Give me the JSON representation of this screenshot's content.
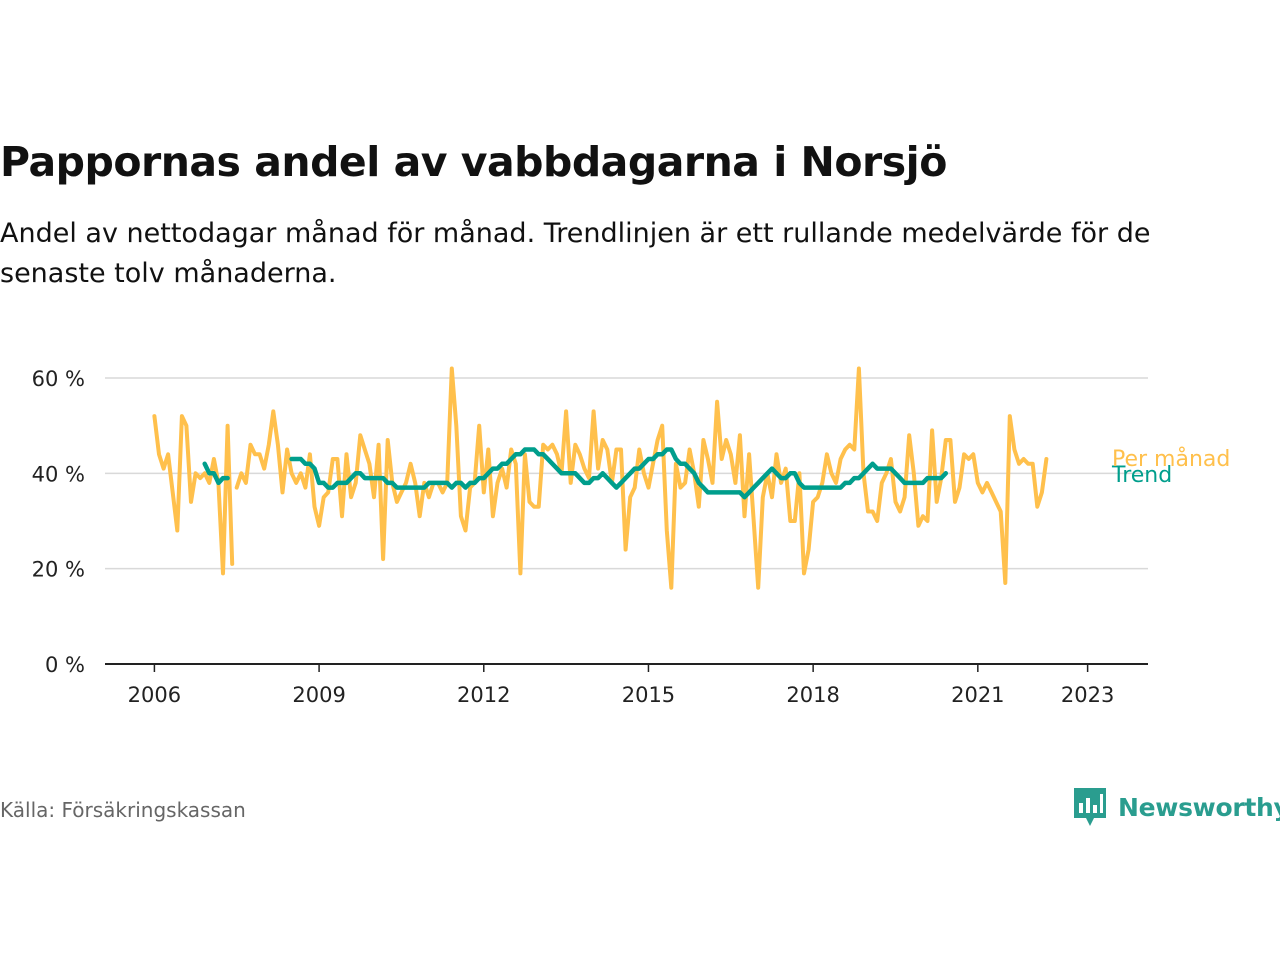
{
  "title": "Pappornas andel av vabbdagarna i Norsjö",
  "subtitle": "Andel av nettodagar månad för månad. Trendlinjen är ett rullande medelvärde för de senaste tolv månaderna.",
  "source": "Källa: Försäkringskassan",
  "brand": "Newsworthy",
  "colors": {
    "monthly": "#ffc04c",
    "trend": "#009e8c",
    "grid": "#d9d9d9",
    "axis": "#222222",
    "brand": "#2a9d8f"
  },
  "chart_data": {
    "type": "line",
    "x_axis": {
      "ticks": [
        2006,
        2009,
        2012,
        2015,
        2018,
        2021,
        2023
      ],
      "range": [
        2005.1,
        2024.1
      ]
    },
    "y_axis": {
      "ticks": [
        0,
        20,
        40,
        60
      ],
      "tick_labels": [
        "0 %",
        "20 %",
        "40 %",
        "60 %"
      ],
      "range": [
        0,
        60
      ]
    },
    "grid": true,
    "series": [
      {
        "name": "Per månad",
        "color": "#ffc04c",
        "segments": [
          {
            "start": 2006.0,
            "values": [
              52,
              44,
              41,
              44,
              36,
              28,
              52,
              50,
              34,
              40,
              39,
              40,
              38,
              43,
              38,
              19,
              50,
              21
            ]
          },
          {
            "start": 2007.5,
            "values": [
              37,
              40,
              38,
              46,
              44,
              44,
              41,
              46,
              53,
              46,
              36,
              45,
              40,
              38,
              40,
              37,
              44,
              33,
              29,
              35,
              36,
              43,
              43,
              31,
              44,
              35,
              38,
              48,
              45,
              42,
              35,
              46,
              22,
              47,
              38,
              34,
              36,
              38,
              42,
              38,
              31,
              38,
              35,
              38,
              38,
              36,
              38,
              62,
              50,
              31,
              28,
              37,
              38,
              50,
              36,
              45,
              31,
              38,
              41,
              37,
              45,
              42,
              19,
              44,
              34,
              33,
              33,
              46,
              45,
              46,
              44,
              40,
              53,
              38,
              46,
              44,
              41,
              39,
              53,
              41,
              47,
              45,
              38,
              45,
              45,
              24,
              35,
              37,
              45,
              40,
              37,
              42,
              47,
              50,
              28,
              16,
              42,
              37,
              38,
              45,
              40,
              33,
              47,
              43,
              38,
              55,
              43,
              47,
              44,
              38,
              48,
              31,
              44,
              30,
              16,
              35,
              40,
              35,
              44,
              38,
              41,
              30,
              30,
              40,
              19,
              24,
              34,
              35,
              38,
              44,
              40,
              38,
              43,
              45,
              46,
              45,
              62,
              40,
              32,
              32,
              30,
              38,
              40,
              43,
              34,
              32,
              35,
              48,
              40,
              29,
              31,
              30,
              49,
              34,
              39,
              47,
              47,
              34,
              37,
              44,
              43,
              44,
              38,
              36,
              38,
              36,
              34,
              32,
              17,
              52,
              45,
              42,
              43,
              42,
              42,
              33,
              36,
              43
            ]
          }
        ]
      },
      {
        "name": "Trend",
        "color": "#009e8c",
        "segments": [
          {
            "start": 2006.9167,
            "values": [
              42,
              40,
              40,
              38,
              39,
              39
            ]
          },
          {
            "start": 2008.5,
            "values": [
              43,
              43,
              43,
              42,
              42,
              41,
              38,
              38,
              37,
              37,
              38,
              38,
              38,
              39,
              40,
              40,
              39,
              39,
              39,
              39,
              39,
              38,
              38,
              37,
              37,
              37,
              37,
              37,
              37,
              37,
              38,
              38,
              38,
              38,
              38,
              37,
              38,
              38,
              37,
              38,
              38,
              39,
              39,
              40,
              41,
              41,
              42,
              42,
              43,
              44,
              44,
              45,
              45,
              45,
              44,
              44,
              43,
              42,
              41,
              40,
              40,
              40,
              40,
              39,
              38,
              38,
              39,
              39,
              40,
              39,
              38,
              37,
              38,
              39,
              40,
              41,
              41,
              42,
              43,
              43,
              44,
              44,
              45,
              45,
              43,
              42,
              42,
              41,
              40,
              38,
              37,
              36,
              36,
              36,
              36,
              36,
              36,
              36,
              36,
              35,
              36,
              37,
              38,
              39,
              40,
              41,
              40,
              39,
              39,
              40,
              40,
              38,
              37,
              37,
              37,
              37,
              37,
              37,
              37,
              37,
              37,
              38,
              38,
              39,
              39,
              40,
              41,
              42,
              41,
              41,
              41,
              41,
              40,
              39,
              38,
              38,
              38,
              38,
              38,
              39,
              39,
              39,
              39,
              40
            ]
          }
        ]
      }
    ],
    "series_labels": [
      "Per månad",
      "Trend"
    ],
    "legend": "direct-labels-right"
  }
}
